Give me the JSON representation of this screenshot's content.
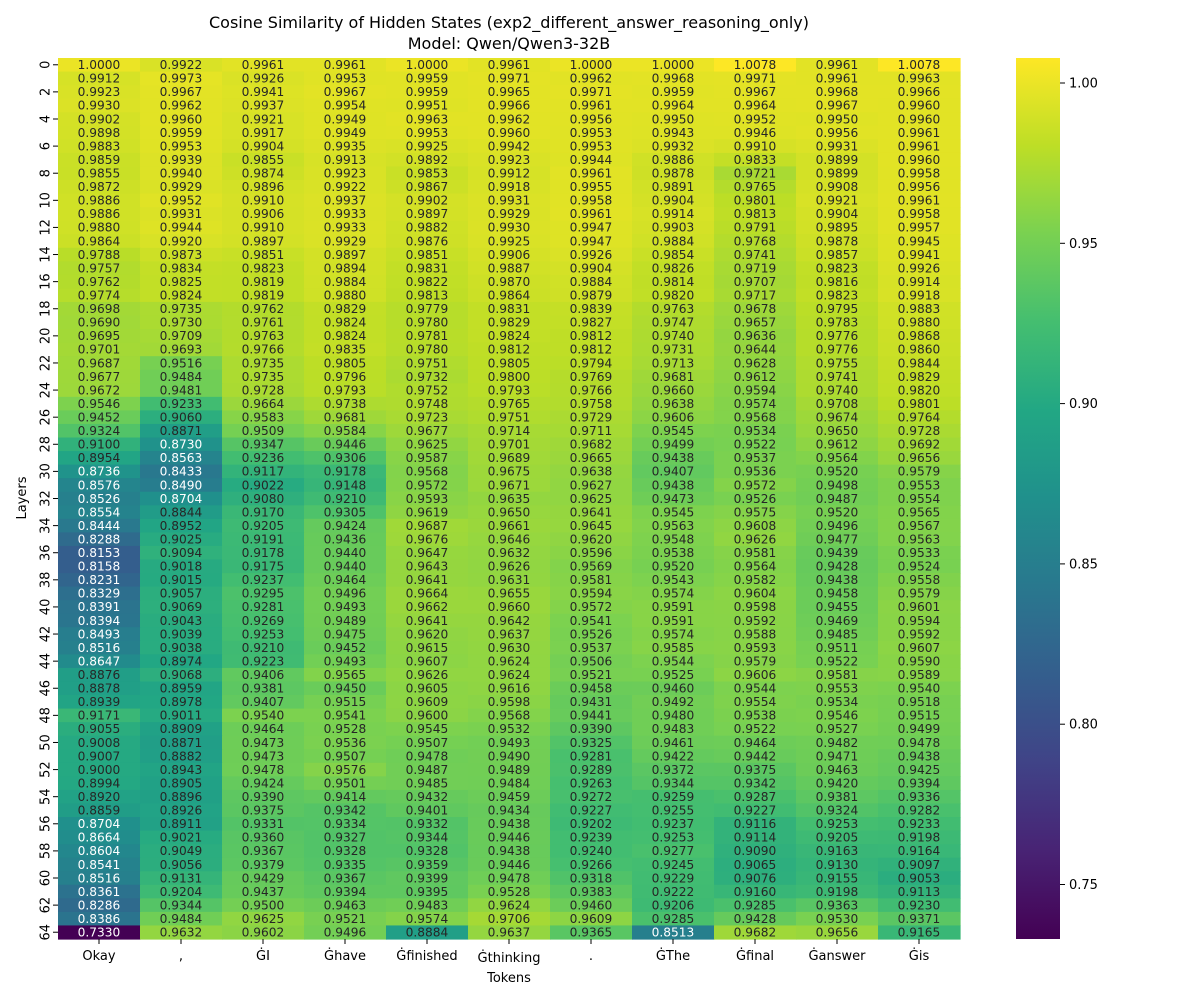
{
  "chart_data": {
    "type": "heatmap",
    "title": "Cosine Similarity of Hidden States (exp2_different_answer_reasoning_only)",
    "subtitle": "Model: Qwen/Qwen3-32B",
    "xlabel": "Tokens",
    "ylabel": "Layers",
    "colormap": "viridis",
    "color_range": [
      0.733,
      1.0078
    ],
    "colorbar_ticks": [
      0.75,
      0.8,
      0.85,
      0.9,
      0.95,
      1.0
    ],
    "colorbar_tick_labels": [
      "0.75",
      "0.80",
      "0.85",
      "0.90",
      "0.95",
      "1.00"
    ],
    "y_tick_labels": [
      "0",
      "2",
      "4",
      "6",
      "8",
      "10",
      "12",
      "14",
      "16",
      "18",
      "20",
      "22",
      "24",
      "26",
      "28",
      "30",
      "32",
      "34",
      "36",
      "38",
      "40",
      "42",
      "44",
      "46",
      "48",
      "50",
      "52",
      "54",
      "56",
      "58",
      "60",
      "62",
      "64"
    ],
    "tokens": [
      "Okay",
      ",",
      "ĠI",
      "Ġhave",
      "Ġfinished",
      "Ġthinking",
      ".",
      "ĠThe",
      "Ġfinal",
      "Ġanswer",
      "Ġis"
    ],
    "values": [
      [
        1.0,
        0.9922,
        0.9961,
        0.9961,
        1.0,
        0.9961,
        1.0,
        1.0,
        1.0078,
        0.9961,
        1.0078
      ],
      [
        0.9912,
        0.9973,
        0.9926,
        0.9953,
        0.9959,
        0.9971,
        0.9962,
        0.9968,
        0.9971,
        0.9961,
        0.9963
      ],
      [
        0.9923,
        0.9967,
        0.9941,
        0.9967,
        0.9959,
        0.9965,
        0.9971,
        0.9959,
        0.9967,
        0.9968,
        0.9966
      ],
      [
        0.993,
        0.9962,
        0.9937,
        0.9954,
        0.9951,
        0.9966,
        0.9961,
        0.9964,
        0.9964,
        0.9967,
        0.996
      ],
      [
        0.9902,
        0.996,
        0.9921,
        0.9949,
        0.9963,
        0.9962,
        0.9956,
        0.995,
        0.9952,
        0.995,
        0.996
      ],
      [
        0.9898,
        0.9959,
        0.9917,
        0.9949,
        0.9953,
        0.996,
        0.9953,
        0.9943,
        0.9946,
        0.9956,
        0.9961
      ],
      [
        0.9883,
        0.9953,
        0.9904,
        0.9935,
        0.9925,
        0.9942,
        0.9953,
        0.9932,
        0.991,
        0.9931,
        0.9961
      ],
      [
        0.9859,
        0.9939,
        0.9855,
        0.9913,
        0.9892,
        0.9923,
        0.9944,
        0.9886,
        0.9833,
        0.9899,
        0.996
      ],
      [
        0.9855,
        0.994,
        0.9874,
        0.9923,
        0.9853,
        0.9912,
        0.9961,
        0.9878,
        0.9721,
        0.9899,
        0.9958
      ],
      [
        0.9872,
        0.9929,
        0.9896,
        0.9922,
        0.9867,
        0.9918,
        0.9955,
        0.9891,
        0.9765,
        0.9908,
        0.9956
      ],
      [
        0.9886,
        0.9952,
        0.991,
        0.9937,
        0.9902,
        0.9931,
        0.9958,
        0.9904,
        0.9801,
        0.9921,
        0.9961
      ],
      [
        0.9886,
        0.9931,
        0.9906,
        0.9933,
        0.9897,
        0.9929,
        0.9961,
        0.9914,
        0.9813,
        0.9904,
        0.9958
      ],
      [
        0.988,
        0.9944,
        0.991,
        0.9933,
        0.9882,
        0.993,
        0.9947,
        0.9903,
        0.9791,
        0.9895,
        0.9957
      ],
      [
        0.9864,
        0.992,
        0.9897,
        0.9929,
        0.9876,
        0.9925,
        0.9947,
        0.9884,
        0.9768,
        0.9878,
        0.9945
      ],
      [
        0.9788,
        0.9873,
        0.9851,
        0.9897,
        0.9851,
        0.9906,
        0.9926,
        0.9854,
        0.9741,
        0.9857,
        0.9941
      ],
      [
        0.9757,
        0.9834,
        0.9823,
        0.9894,
        0.9831,
        0.9887,
        0.9904,
        0.9826,
        0.9719,
        0.9823,
        0.9926
      ],
      [
        0.9762,
        0.9825,
        0.9819,
        0.9884,
        0.9822,
        0.987,
        0.9884,
        0.9814,
        0.9707,
        0.9816,
        0.9914
      ],
      [
        0.9774,
        0.9824,
        0.9819,
        0.988,
        0.9813,
        0.9864,
        0.9879,
        0.982,
        0.9717,
        0.9823,
        0.9918
      ],
      [
        0.9698,
        0.9735,
        0.9762,
        0.9829,
        0.9779,
        0.9831,
        0.9839,
        0.9763,
        0.9678,
        0.9795,
        0.9883
      ],
      [
        0.969,
        0.973,
        0.9761,
        0.9824,
        0.978,
        0.9829,
        0.9827,
        0.9747,
        0.9657,
        0.9783,
        0.988
      ],
      [
        0.9695,
        0.9709,
        0.9763,
        0.9824,
        0.9781,
        0.9824,
        0.9812,
        0.974,
        0.9636,
        0.9776,
        0.9868
      ],
      [
        0.9701,
        0.9693,
        0.9766,
        0.9835,
        0.978,
        0.9812,
        0.9812,
        0.9731,
        0.9644,
        0.9776,
        0.986
      ],
      [
        0.9687,
        0.9516,
        0.9735,
        0.9805,
        0.9751,
        0.9805,
        0.9794,
        0.9713,
        0.9628,
        0.9755,
        0.9844
      ],
      [
        0.9677,
        0.9484,
        0.9735,
        0.9796,
        0.9732,
        0.98,
        0.9769,
        0.9681,
        0.9612,
        0.9741,
        0.9829
      ],
      [
        0.9672,
        0.9481,
        0.9728,
        0.9793,
        0.9752,
        0.9793,
        0.9766,
        0.966,
        0.9594,
        0.974,
        0.982
      ],
      [
        0.9546,
        0.9233,
        0.9664,
        0.9738,
        0.9748,
        0.9765,
        0.9758,
        0.9638,
        0.9574,
        0.9708,
        0.9801
      ],
      [
        0.9452,
        0.906,
        0.9583,
        0.9681,
        0.9723,
        0.9751,
        0.9729,
        0.9606,
        0.9568,
        0.9674,
        0.9764
      ],
      [
        0.9324,
        0.8871,
        0.9509,
        0.9584,
        0.9677,
        0.9714,
        0.9711,
        0.9545,
        0.9534,
        0.965,
        0.9728
      ],
      [
        0.91,
        0.873,
        0.9347,
        0.9446,
        0.9625,
        0.9701,
        0.9682,
        0.9499,
        0.9522,
        0.9612,
        0.9692
      ],
      [
        0.8954,
        0.8563,
        0.9236,
        0.9306,
        0.9587,
        0.9689,
        0.9665,
        0.9438,
        0.9537,
        0.9564,
        0.9656
      ],
      [
        0.8736,
        0.8433,
        0.9117,
        0.9178,
        0.9568,
        0.9675,
        0.9638,
        0.9407,
        0.9536,
        0.952,
        0.9579
      ],
      [
        0.8576,
        0.849,
        0.9022,
        0.9148,
        0.9572,
        0.9671,
        0.9627,
        0.9438,
        0.9572,
        0.9498,
        0.9553
      ],
      [
        0.8526,
        0.8704,
        0.908,
        0.921,
        0.9593,
        0.9635,
        0.9625,
        0.9473,
        0.9526,
        0.9487,
        0.9554
      ],
      [
        0.8554,
        0.8844,
        0.917,
        0.9305,
        0.9619,
        0.965,
        0.9641,
        0.9545,
        0.9575,
        0.952,
        0.9565
      ],
      [
        0.8444,
        0.8952,
        0.9205,
        0.9424,
        0.9687,
        0.9661,
        0.9645,
        0.9563,
        0.9608,
        0.9496,
        0.9567
      ],
      [
        0.8288,
        0.9025,
        0.9191,
        0.9436,
        0.9676,
        0.9646,
        0.962,
        0.9548,
        0.9626,
        0.9477,
        0.9563
      ],
      [
        0.8153,
        0.9094,
        0.9178,
        0.944,
        0.9647,
        0.9632,
        0.9596,
        0.9538,
        0.9581,
        0.9439,
        0.9533
      ],
      [
        0.8158,
        0.9018,
        0.9175,
        0.944,
        0.9643,
        0.9626,
        0.9569,
        0.952,
        0.9564,
        0.9428,
        0.9524
      ],
      [
        0.8231,
        0.9015,
        0.9237,
        0.9464,
        0.9641,
        0.9631,
        0.9581,
        0.9543,
        0.9582,
        0.9438,
        0.9558
      ],
      [
        0.8329,
        0.9057,
        0.9295,
        0.9496,
        0.9664,
        0.9655,
        0.9594,
        0.9574,
        0.9604,
        0.9458,
        0.9579
      ],
      [
        0.8391,
        0.9069,
        0.9281,
        0.9493,
        0.9662,
        0.966,
        0.9572,
        0.9591,
        0.9598,
        0.9455,
        0.9601
      ],
      [
        0.8394,
        0.9043,
        0.9269,
        0.9489,
        0.9641,
        0.9642,
        0.9541,
        0.9591,
        0.9592,
        0.9469,
        0.9594
      ],
      [
        0.8493,
        0.9039,
        0.9253,
        0.9475,
        0.962,
        0.9637,
        0.9526,
        0.9574,
        0.9588,
        0.9485,
        0.9592
      ],
      [
        0.8516,
        0.9038,
        0.921,
        0.9452,
        0.9615,
        0.963,
        0.9537,
        0.9585,
        0.9593,
        0.9511,
        0.9607
      ],
      [
        0.8647,
        0.8974,
        0.9223,
        0.9493,
        0.9607,
        0.9624,
        0.9506,
        0.9544,
        0.9579,
        0.9522,
        0.959
      ],
      [
        0.8876,
        0.9068,
        0.9406,
        0.9565,
        0.9626,
        0.9624,
        0.9521,
        0.9525,
        0.9606,
        0.9581,
        0.9589
      ],
      [
        0.8878,
        0.8959,
        0.9381,
        0.945,
        0.9605,
        0.9616,
        0.9458,
        0.946,
        0.9544,
        0.9553,
        0.954
      ],
      [
        0.8939,
        0.8978,
        0.9407,
        0.9515,
        0.9609,
        0.9598,
        0.9431,
        0.9492,
        0.9554,
        0.9534,
        0.9518
      ],
      [
        0.9171,
        0.9011,
        0.954,
        0.9541,
        0.96,
        0.9568,
        0.9441,
        0.948,
        0.9538,
        0.9546,
        0.9515
      ],
      [
        0.9055,
        0.8909,
        0.9464,
        0.9528,
        0.9545,
        0.9532,
        0.939,
        0.9483,
        0.9522,
        0.9527,
        0.9499
      ],
      [
        0.9008,
        0.8871,
        0.9473,
        0.9536,
        0.9507,
        0.9493,
        0.9325,
        0.9461,
        0.9464,
        0.9482,
        0.9478
      ],
      [
        0.9007,
        0.8882,
        0.9473,
        0.9507,
        0.9478,
        0.949,
        0.9281,
        0.9422,
        0.9442,
        0.9471,
        0.9438
      ],
      [
        0.9,
        0.8943,
        0.9478,
        0.9576,
        0.9487,
        0.9489,
        0.9289,
        0.9372,
        0.9375,
        0.9463,
        0.9425
      ],
      [
        0.8994,
        0.8905,
        0.9424,
        0.9501,
        0.9485,
        0.9484,
        0.9263,
        0.9344,
        0.9342,
        0.942,
        0.9394
      ],
      [
        0.892,
        0.8896,
        0.939,
        0.9414,
        0.9432,
        0.9459,
        0.9272,
        0.9259,
        0.9287,
        0.9381,
        0.9336
      ],
      [
        0.8859,
        0.8926,
        0.9375,
        0.9342,
        0.9401,
        0.9434,
        0.9227,
        0.9255,
        0.9227,
        0.9324,
        0.9282
      ],
      [
        0.8704,
        0.8911,
        0.9331,
        0.9334,
        0.9332,
        0.9438,
        0.9202,
        0.9237,
        0.9116,
        0.9253,
        0.9233
      ],
      [
        0.8664,
        0.9021,
        0.936,
        0.9327,
        0.9344,
        0.9446,
        0.9239,
        0.9253,
        0.9114,
        0.9205,
        0.9198
      ],
      [
        0.8604,
        0.9049,
        0.9367,
        0.9328,
        0.9328,
        0.9438,
        0.924,
        0.9277,
        0.909,
        0.9163,
        0.9164
      ],
      [
        0.8541,
        0.9056,
        0.9379,
        0.9335,
        0.9359,
        0.9446,
        0.9266,
        0.9245,
        0.9065,
        0.913,
        0.9097
      ],
      [
        0.8516,
        0.9131,
        0.9429,
        0.9367,
        0.9399,
        0.9478,
        0.9318,
        0.9229,
        0.9076,
        0.9155,
        0.9053
      ],
      [
        0.8361,
        0.9204,
        0.9437,
        0.9394,
        0.9395,
        0.9528,
        0.9383,
        0.9222,
        0.916,
        0.9198,
        0.9113
      ],
      [
        0.8286,
        0.9344,
        0.95,
        0.9463,
        0.9483,
        0.9624,
        0.946,
        0.9206,
        0.9285,
        0.9363,
        0.923
      ],
      [
        0.8386,
        0.9484,
        0.9625,
        0.9521,
        0.9574,
        0.9706,
        0.9609,
        0.9285,
        0.9428,
        0.953,
        0.9371
      ],
      [
        0.733,
        0.9632,
        0.9602,
        0.9496,
        0.8884,
        0.9637,
        0.9365,
        0.8513,
        0.9682,
        0.9656,
        0.9165
      ]
    ]
  }
}
